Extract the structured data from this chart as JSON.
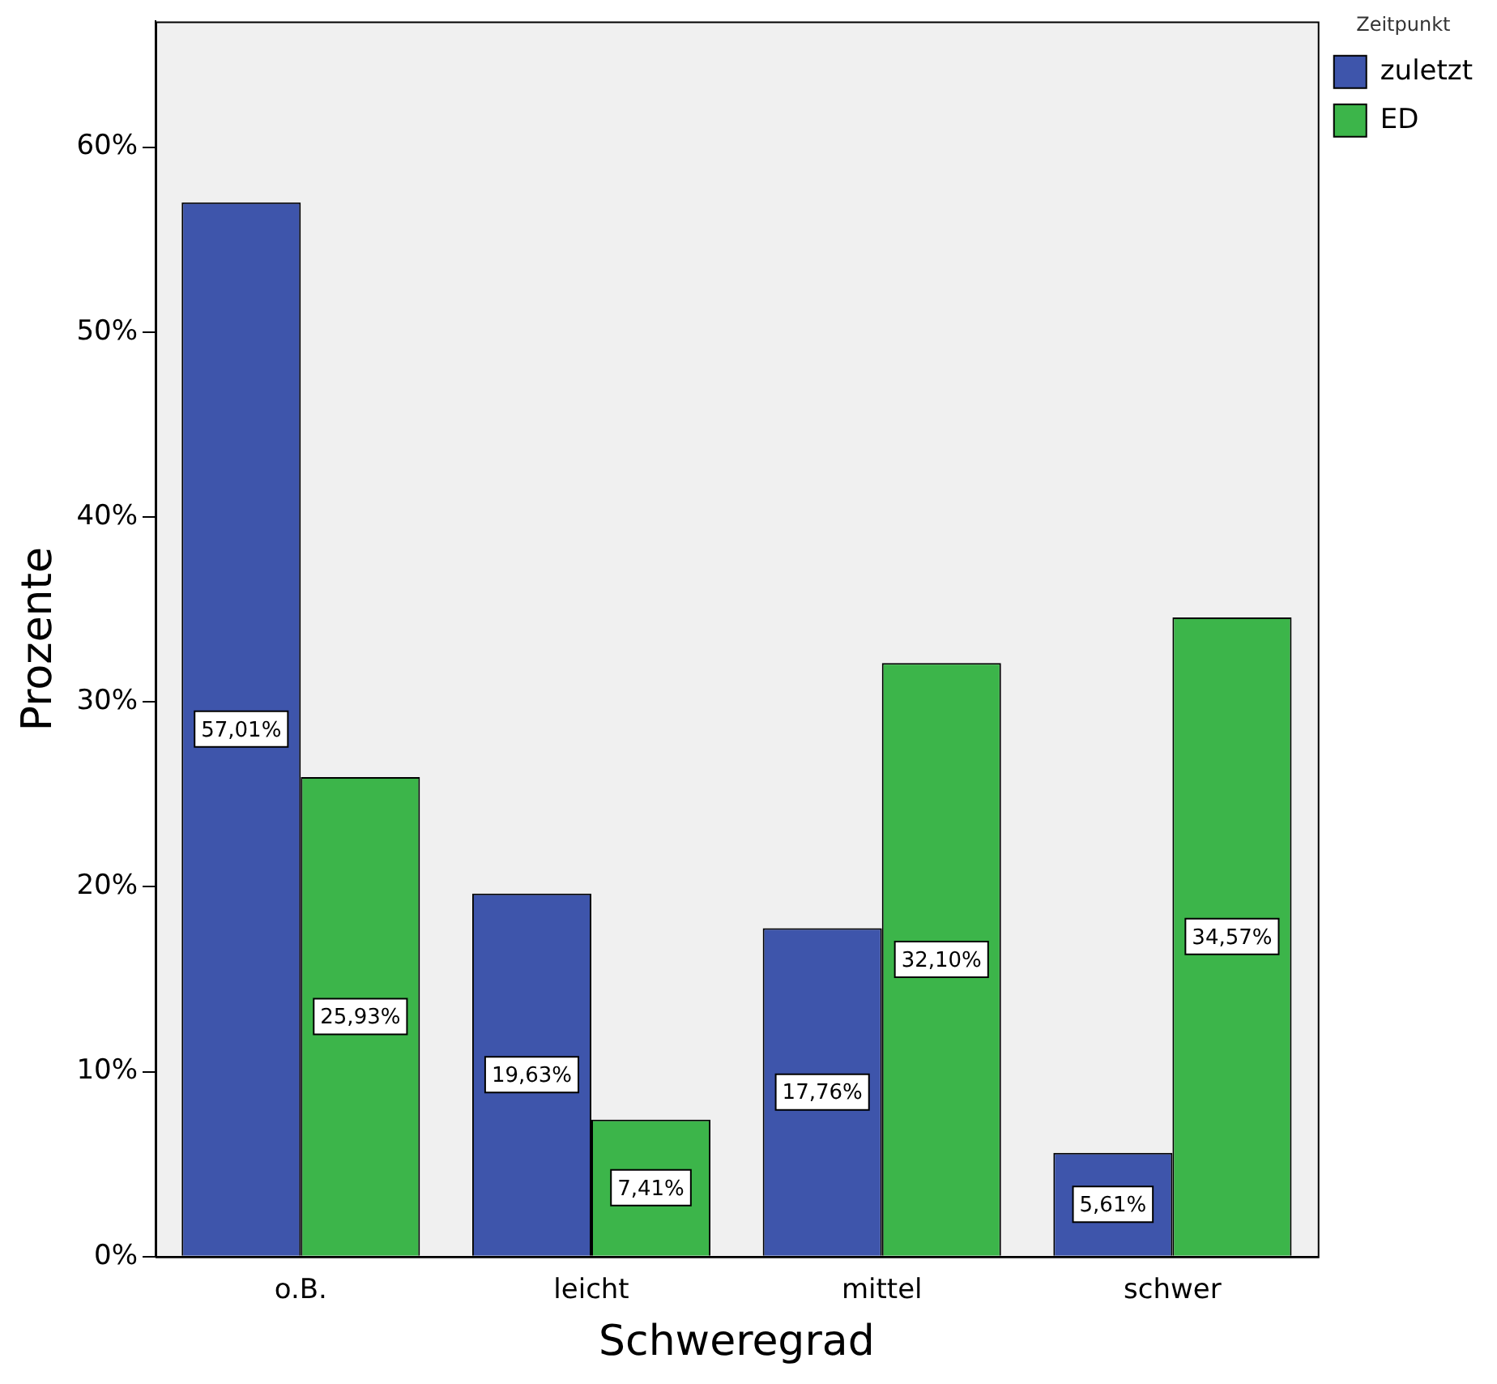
{
  "chart_data": {
    "type": "bar",
    "xlabel": "Schweregrad",
    "ylabel": "Prozente",
    "legend_title": "Zeitpunkt",
    "legend": "top right",
    "grid": false,
    "categories": [
      "o.B.",
      "leicht",
      "mittel",
      "schwer"
    ],
    "series": [
      {
        "name": "zuletzt",
        "color": "#3e55ab",
        "values": [
          57.01,
          19.63,
          17.76,
          5.61
        ],
        "value_labels": [
          "57,01%",
          "19,63%",
          "17,76%",
          "5,61%"
        ]
      },
      {
        "name": "ED",
        "color": "#3cb54a",
        "values": [
          25.93,
          7.41,
          32.1,
          34.57
        ],
        "value_labels": [
          "25,93%",
          "7,41%",
          "32,10%",
          "34,57%"
        ]
      }
    ],
    "ylim": [
      0,
      66.8
    ],
    "yticks": [
      {
        "value": 0,
        "label": "0%"
      },
      {
        "value": 10,
        "label": "10%"
      },
      {
        "value": 20,
        "label": "20%"
      },
      {
        "value": 30,
        "label": "30%"
      },
      {
        "value": 40,
        "label": "40%"
      },
      {
        "value": 50,
        "label": "50%"
      },
      {
        "value": 60,
        "label": "60%"
      }
    ]
  }
}
